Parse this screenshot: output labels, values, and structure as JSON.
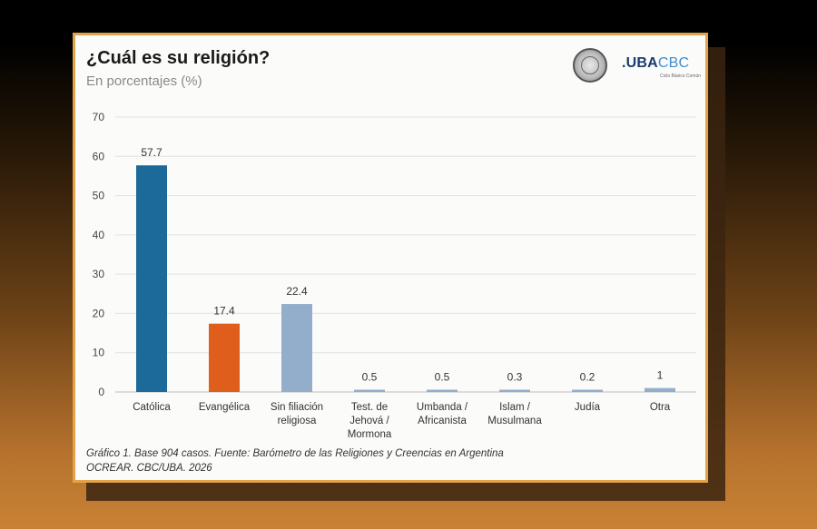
{
  "title": "¿Cuál es su religión?",
  "subtitle": "En porcentajes (%)",
  "logo": {
    "uba": ".UBA",
    "cbc": "CBC",
    "tagline": "Ciclo Básico Común"
  },
  "footnote": {
    "line1": "Gráfico 1. Base 904 casos. Fuente: Barómetro de las Religiones y Creencias en Argentina",
    "line2": "OCREAR. CBC/UBA. 2026"
  },
  "chart_data": {
    "type": "bar",
    "title": "¿Cuál es su religión?",
    "subtitle": "En porcentajes (%)",
    "xlabel": "",
    "ylabel": "",
    "ylim": [
      0,
      70
    ],
    "yticks": [
      0,
      10,
      20,
      30,
      40,
      50,
      60,
      70
    ],
    "grid": true,
    "legend": "none",
    "categories": [
      [
        "Católica"
      ],
      [
        "Evangélica"
      ],
      [
        "Sin filiación",
        "religiosa"
      ],
      [
        "Test. de",
        "Jehová /",
        "Mormona"
      ],
      [
        "Umbanda /",
        "Africanista"
      ],
      [
        "Islam /",
        "Musulmana"
      ],
      [
        "Judía"
      ],
      [
        "Otra"
      ]
    ],
    "values": [
      57.7,
      17.4,
      22.4,
      0.5,
      0.5,
      0.3,
      0.2,
      1
    ],
    "value_labels": [
      "57.7",
      "17.4",
      "22.4",
      "0.5",
      "0.5",
      "0.3",
      "0.2",
      "1"
    ],
    "colors": [
      "#1b6a9a",
      "#e05e1c",
      "#93aecb",
      "#93aecb",
      "#93aecb",
      "#93aecb",
      "#93aecb",
      "#93aecb"
    ]
  }
}
